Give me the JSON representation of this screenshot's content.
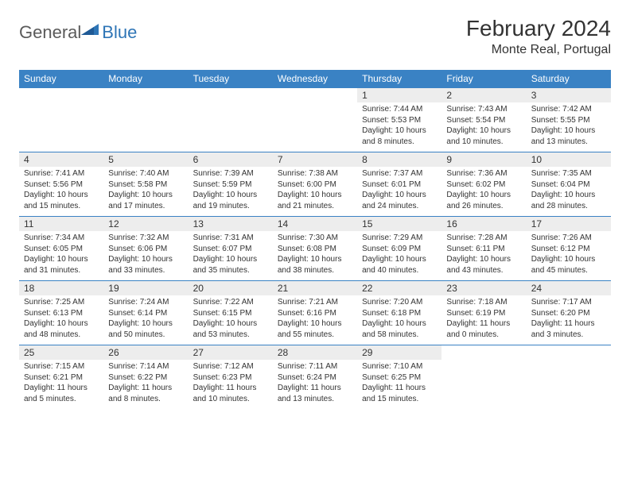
{
  "brand": {
    "part1": "General",
    "part2": "Blue"
  },
  "title": "February 2024",
  "location": "Monte Real, Portugal",
  "colors": {
    "header_bg": "#3a82c4",
    "daynum_bg": "#ededed",
    "border": "#3a82c4",
    "text": "#333333",
    "logo_gray": "#5a5a5a",
    "logo_blue": "#2e75b6"
  },
  "weekdays": [
    "Sunday",
    "Monday",
    "Tuesday",
    "Wednesday",
    "Thursday",
    "Friday",
    "Saturday"
  ],
  "weeks": [
    [
      null,
      null,
      null,
      null,
      {
        "n": "1",
        "sr": "7:44 AM",
        "ss": "5:53 PM",
        "dl": "10 hours and 8 minutes."
      },
      {
        "n": "2",
        "sr": "7:43 AM",
        "ss": "5:54 PM",
        "dl": "10 hours and 10 minutes."
      },
      {
        "n": "3",
        "sr": "7:42 AM",
        "ss": "5:55 PM",
        "dl": "10 hours and 13 minutes."
      }
    ],
    [
      {
        "n": "4",
        "sr": "7:41 AM",
        "ss": "5:56 PM",
        "dl": "10 hours and 15 minutes."
      },
      {
        "n": "5",
        "sr": "7:40 AM",
        "ss": "5:58 PM",
        "dl": "10 hours and 17 minutes."
      },
      {
        "n": "6",
        "sr": "7:39 AM",
        "ss": "5:59 PM",
        "dl": "10 hours and 19 minutes."
      },
      {
        "n": "7",
        "sr": "7:38 AM",
        "ss": "6:00 PM",
        "dl": "10 hours and 21 minutes."
      },
      {
        "n": "8",
        "sr": "7:37 AM",
        "ss": "6:01 PM",
        "dl": "10 hours and 24 minutes."
      },
      {
        "n": "9",
        "sr": "7:36 AM",
        "ss": "6:02 PM",
        "dl": "10 hours and 26 minutes."
      },
      {
        "n": "10",
        "sr": "7:35 AM",
        "ss": "6:04 PM",
        "dl": "10 hours and 28 minutes."
      }
    ],
    [
      {
        "n": "11",
        "sr": "7:34 AM",
        "ss": "6:05 PM",
        "dl": "10 hours and 31 minutes."
      },
      {
        "n": "12",
        "sr": "7:32 AM",
        "ss": "6:06 PM",
        "dl": "10 hours and 33 minutes."
      },
      {
        "n": "13",
        "sr": "7:31 AM",
        "ss": "6:07 PM",
        "dl": "10 hours and 35 minutes."
      },
      {
        "n": "14",
        "sr": "7:30 AM",
        "ss": "6:08 PM",
        "dl": "10 hours and 38 minutes."
      },
      {
        "n": "15",
        "sr": "7:29 AM",
        "ss": "6:09 PM",
        "dl": "10 hours and 40 minutes."
      },
      {
        "n": "16",
        "sr": "7:28 AM",
        "ss": "6:11 PM",
        "dl": "10 hours and 43 minutes."
      },
      {
        "n": "17",
        "sr": "7:26 AM",
        "ss": "6:12 PM",
        "dl": "10 hours and 45 minutes."
      }
    ],
    [
      {
        "n": "18",
        "sr": "7:25 AM",
        "ss": "6:13 PM",
        "dl": "10 hours and 48 minutes."
      },
      {
        "n": "19",
        "sr": "7:24 AM",
        "ss": "6:14 PM",
        "dl": "10 hours and 50 minutes."
      },
      {
        "n": "20",
        "sr": "7:22 AM",
        "ss": "6:15 PM",
        "dl": "10 hours and 53 minutes."
      },
      {
        "n": "21",
        "sr": "7:21 AM",
        "ss": "6:16 PM",
        "dl": "10 hours and 55 minutes."
      },
      {
        "n": "22",
        "sr": "7:20 AM",
        "ss": "6:18 PM",
        "dl": "10 hours and 58 minutes."
      },
      {
        "n": "23",
        "sr": "7:18 AM",
        "ss": "6:19 PM",
        "dl": "11 hours and 0 minutes."
      },
      {
        "n": "24",
        "sr": "7:17 AM",
        "ss": "6:20 PM",
        "dl": "11 hours and 3 minutes."
      }
    ],
    [
      {
        "n": "25",
        "sr": "7:15 AM",
        "ss": "6:21 PM",
        "dl": "11 hours and 5 minutes."
      },
      {
        "n": "26",
        "sr": "7:14 AM",
        "ss": "6:22 PM",
        "dl": "11 hours and 8 minutes."
      },
      {
        "n": "27",
        "sr": "7:12 AM",
        "ss": "6:23 PM",
        "dl": "11 hours and 10 minutes."
      },
      {
        "n": "28",
        "sr": "7:11 AM",
        "ss": "6:24 PM",
        "dl": "11 hours and 13 minutes."
      },
      {
        "n": "29",
        "sr": "7:10 AM",
        "ss": "6:25 PM",
        "dl": "11 hours and 15 minutes."
      },
      null,
      null
    ]
  ],
  "labels": {
    "sunrise": "Sunrise: ",
    "sunset": "Sunset: ",
    "daylight": "Daylight: "
  }
}
